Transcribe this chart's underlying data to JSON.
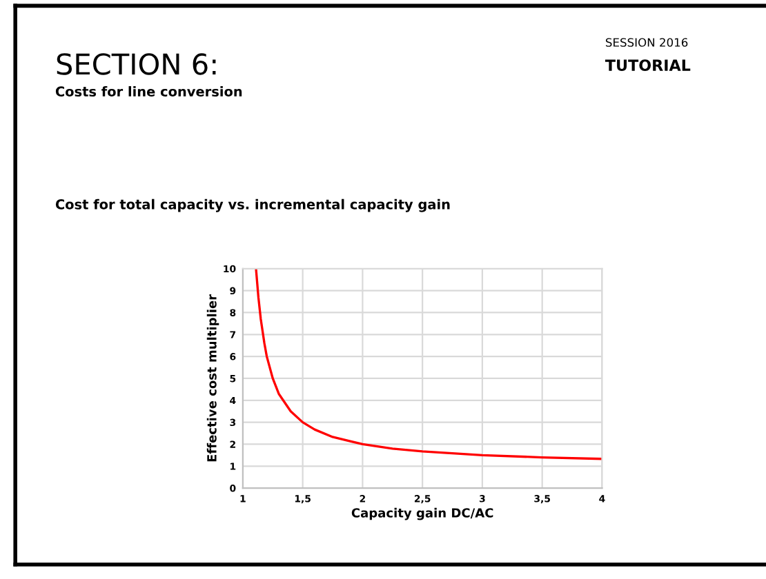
{
  "chart_data": {
    "type": "line",
    "title": "SECTION 6:",
    "subtitle": "Costs for line conversion",
    "annotations": [
      "Cost for total capacity vs. incremental capacity gain",
      "SESSION 2016",
      "TUTORIAL"
    ],
    "xlabel": "Capacity gain DC/AC",
    "ylabel": "Effective cost multiplier",
    "series": [
      {
        "color": "#ff0000",
        "x": [
          1.11,
          1.13,
          1.15,
          1.18,
          1.2,
          1.25,
          1.3,
          1.4,
          1.5,
          1.6,
          1.75,
          2,
          2.25,
          2.5,
          3,
          3.5,
          4
        ],
        "values": [
          10,
          8.7,
          7.7,
          6.6,
          6,
          5,
          4.3,
          3.5,
          3,
          2.67,
          2.33,
          2,
          1.8,
          1.67,
          1.5,
          1.4,
          1.33
        ]
      }
    ],
    "xlim": [
      1,
      4
    ],
    "ylim": [
      0,
      10
    ],
    "xticks": [
      1,
      {
        "value": 1.5,
        "label": "1,5"
      },
      2,
      {
        "value": 2.5,
        "label": "2,5"
      },
      3,
      {
        "value": 3.5,
        "label": "3,5"
      },
      4
    ],
    "yticks": [
      0,
      1,
      2,
      3,
      4,
      5,
      6,
      7,
      8,
      9,
      10
    ],
    "grid": true,
    "marker": "none",
    "line_style": "solid",
    "legend": false
  }
}
